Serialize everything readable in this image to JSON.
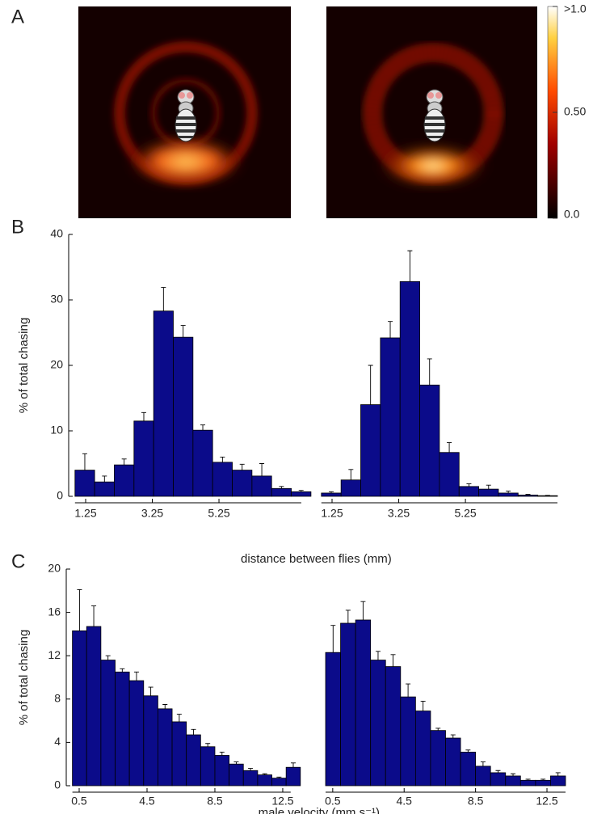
{
  "panel_labels": [
    "A",
    "B",
    "C"
  ],
  "colorbar": {
    "lim": [
      0,
      1
    ],
    "ticks": [
      {
        "value": 1.0,
        "label": ">1.0"
      },
      {
        "value": 0.5,
        "label": "0.50"
      },
      {
        "value": 0,
        "label": "0.0"
      }
    ]
  },
  "chart_data": [
    {
      "type": "histogram",
      "ylabel": "% of total chasing",
      "xlabel": "distance between flies (mm)",
      "color": "#0b0b8a",
      "bins": [
        0.93,
        1.52,
        2.11,
        2.7,
        3.29,
        3.88,
        4.47,
        5.06,
        5.65,
        6.24,
        6.83,
        7.42,
        8.01
      ],
      "values": [
        4,
        2.2,
        4.8,
        11.5,
        28.3,
        24.3,
        10.1,
        5.2,
        4,
        3.1,
        1.2,
        0.7
      ],
      "errors": [
        2.5,
        0.9,
        0.9,
        1.3,
        3.6,
        1.8,
        0.8,
        0.8,
        0.9,
        1.9,
        0.3,
        0.2
      ],
      "xlim": [
        0.93,
        8.01
      ],
      "ylim": [
        0,
        40
      ],
      "xticks": [
        1.25,
        3.25,
        5.25
      ],
      "yticks": [
        0,
        10,
        20,
        30,
        40
      ]
    },
    {
      "type": "histogram",
      "color": "#0b0b8a",
      "bins": [
        0.93,
        1.52,
        2.11,
        2.7,
        3.29,
        3.88,
        4.47,
        5.06,
        5.65,
        6.24,
        6.83,
        7.42,
        8.01
      ],
      "values": [
        0.5,
        2.5,
        14,
        24.2,
        32.8,
        17,
        6.7,
        1.5,
        1.1,
        0.5,
        0.2,
        0.1
      ],
      "errors": [
        0.2,
        1.6,
        6,
        2.5,
        4.7,
        4,
        1.5,
        0.4,
        0.6,
        0.3,
        0.1,
        0.05
      ],
      "xlim": [
        0.93,
        8.01
      ],
      "ylim": [
        0,
        40
      ],
      "xticks": [
        1.25,
        3.25,
        5.25
      ]
    },
    {
      "type": "histogram",
      "ylabel": "% of total chasing",
      "xlabel": "male velocity (mm s⁻¹)",
      "color": "#0b0b8a",
      "bins": [
        0.1,
        0.94,
        1.78,
        2.62,
        3.46,
        4.3,
        5.14,
        5.98,
        6.82,
        7.66,
        8.5,
        9.34,
        10.18,
        11.02,
        11.86,
        12.7,
        13.54
      ],
      "values": [
        14.3,
        14.7,
        11.6,
        10.5,
        9.7,
        8.3,
        7.1,
        5.9,
        4.7,
        3.6,
        2.8,
        2.0,
        1.4,
        1.0,
        0.7,
        1.7
      ],
      "errors": [
        3.8,
        1.9,
        0.4,
        0.3,
        0.8,
        0.8,
        0.4,
        0.7,
        0.5,
        0.3,
        0.3,
        0.2,
        0.2,
        0.1,
        0.1,
        0.4
      ],
      "xlim": [
        0.1,
        13.54
      ],
      "ylim": [
        0,
        20
      ],
      "xticks": [
        0.5,
        4.5,
        8.5,
        12.5
      ],
      "yticks": [
        0,
        4,
        8,
        12,
        16,
        20
      ]
    },
    {
      "type": "histogram",
      "color": "#0b0b8a",
      "bins": [
        0.1,
        0.94,
        1.78,
        2.62,
        3.46,
        4.3,
        5.14,
        5.98,
        6.82,
        7.66,
        8.5,
        9.34,
        10.18,
        11.02,
        11.86,
        12.7,
        13.54
      ],
      "values": [
        12.3,
        15,
        15.3,
        11.6,
        11,
        8.2,
        6.9,
        5.1,
        4.4,
        3.1,
        1.8,
        1.2,
        0.9,
        0.5,
        0.5,
        0.9
      ],
      "errors": [
        2.5,
        1.2,
        1.7,
        0.8,
        1.1,
        1.2,
        0.9,
        0.2,
        0.3,
        0.2,
        0.4,
        0.2,
        0.2,
        0.1,
        0.1,
        0.3
      ],
      "xlim": [
        0.1,
        13.54
      ],
      "ylim": [
        0,
        20
      ],
      "xticks": [
        0.5,
        4.5,
        8.5,
        12.5
      ]
    }
  ]
}
